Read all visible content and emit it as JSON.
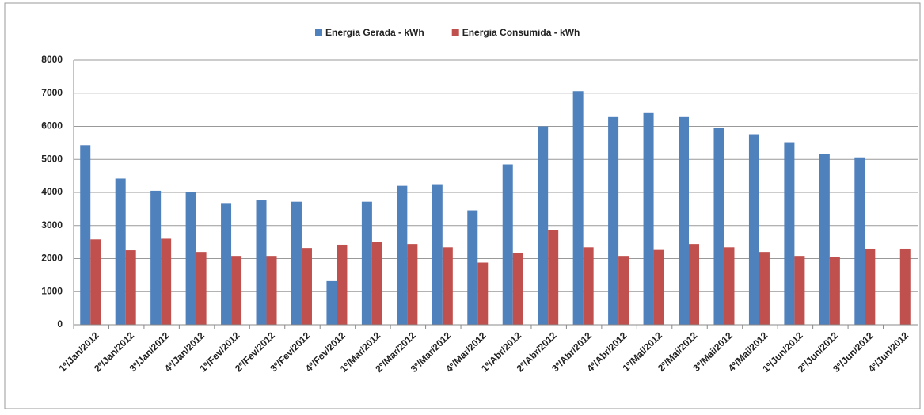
{
  "chart_data": {
    "type": "bar",
    "categories": [
      "1º/Jan/2012",
      "2º/Jan/2012",
      "3º/Jan/2012",
      "4º/Jan/2012",
      "1º/Fev/2012",
      "2º/Fev/2012",
      "3º/Fev/2012",
      "4º/Fev/2012",
      "1º/Mar/2012",
      "2º/Mar/2012",
      "3º/Mar/2012",
      "4º/Mar/2012",
      "1º/Abr/2012",
      "2º/Abr/2012",
      "3º/Abr/2012",
      "4º/Abr/2012",
      "1º/Mai/2012",
      "2º/Mai/2012",
      "3º/Mai/2012",
      "4º/Mai/2012",
      "1º/Jun/2012",
      "2º/Jun/2012",
      "3º/Jun/2012",
      "4º/Jun/2012"
    ],
    "series": [
      {
        "name": "Energia Gerada - kWh",
        "color": "#4f81bd",
        "values": [
          5430,
          4420,
          4050,
          4000,
          3680,
          3760,
          3720,
          1320,
          3720,
          4200,
          4250,
          3460,
          4850,
          6000,
          7060,
          6280,
          6400,
          6280,
          5960,
          5760,
          5520,
          5150,
          5060,
          null
        ]
      },
      {
        "name": "Energia Consumida - kWh",
        "color": "#c0504d",
        "values": [
          2580,
          2250,
          2600,
          2200,
          2080,
          2080,
          2320,
          2420,
          2500,
          2440,
          2340,
          1880,
          2180,
          2870,
          2340,
          2080,
          2260,
          2440,
          2340,
          2200,
          2080,
          2060,
          2300,
          2300
        ]
      }
    ],
    "ylim": [
      0,
      8000
    ],
    "yticks": [
      0,
      1000,
      2000,
      3000,
      4000,
      5000,
      6000,
      7000,
      8000
    ],
    "grid": true,
    "legend": "top"
  }
}
